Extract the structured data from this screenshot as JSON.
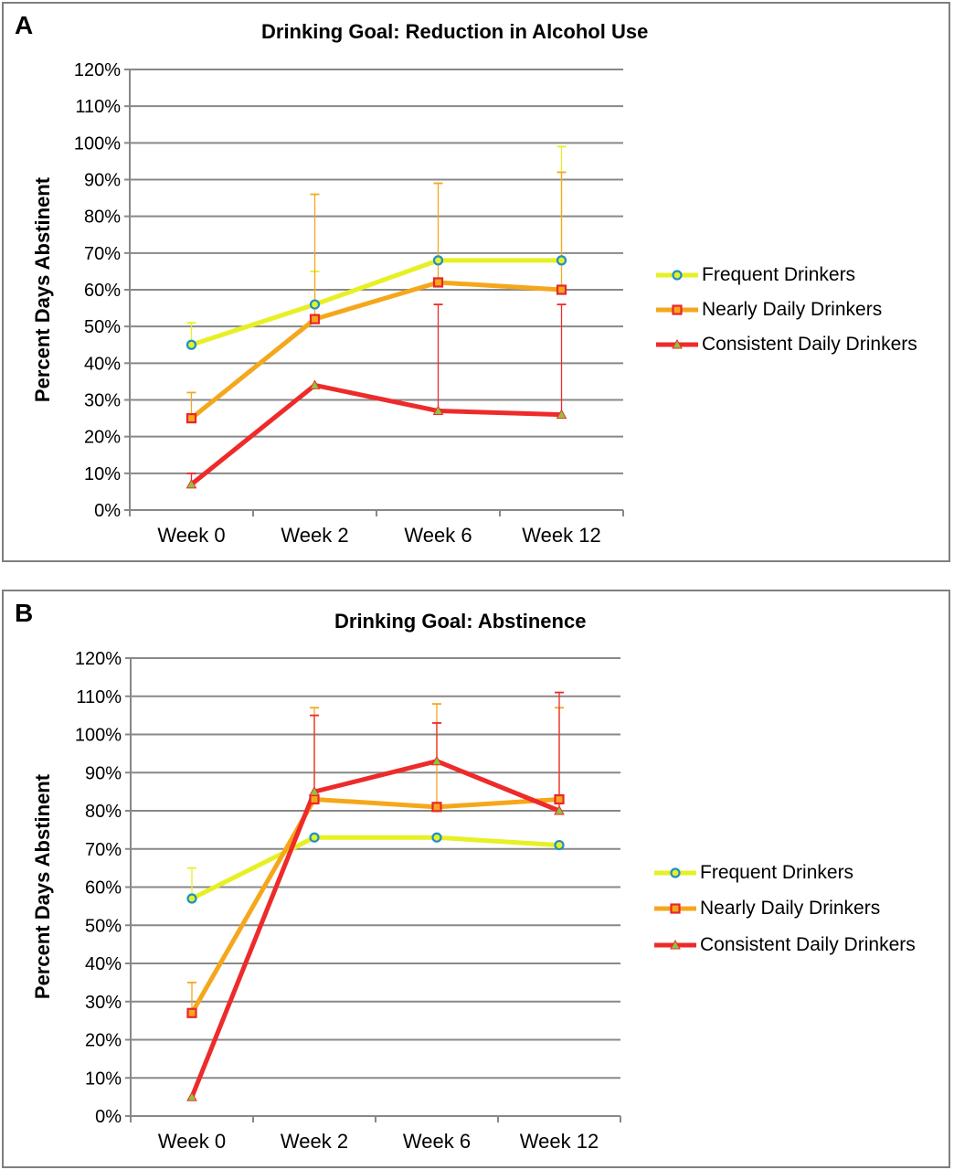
{
  "chart_data": [
    {
      "type": "line",
      "panel_label": "A",
      "title": "Drinking Goal: Reduction in Alcohol Use",
      "xlabel": "",
      "ylabel": "Percent Days Abstinent",
      "categories": [
        "Week 0",
        "Week 2",
        "Week 6",
        "Week 12"
      ],
      "y_ticks": [
        "0%",
        "10%",
        "20%",
        "30%",
        "40%",
        "50%",
        "60%",
        "70%",
        "80%",
        "90%",
        "100%",
        "110%",
        "120%"
      ],
      "ylim": [
        0,
        120
      ],
      "grid": true,
      "legend_position": "right",
      "series": [
        {
          "name": "Frequent Drinkers",
          "values": [
            45,
            56,
            68,
            68
          ],
          "error_upper": [
            51,
            65,
            68,
            99
          ],
          "color": "#e6f024",
          "marker": "circle",
          "marker_color": "#1f8fc9"
        },
        {
          "name": "Nearly Daily Drinkers",
          "values": [
            25,
            52,
            62,
            60
          ],
          "error_upper": [
            32,
            86,
            89,
            92
          ],
          "color": "#f5a71c",
          "marker": "square",
          "marker_color": "#e8262c"
        },
        {
          "name": "Consistent Daily Drinkers",
          "values": [
            7,
            34,
            27,
            26
          ],
          "error_upper": [
            10,
            34,
            56,
            56
          ],
          "color": "#ee2a2a",
          "marker": "triangle",
          "marker_color": "#8cc63e"
        }
      ]
    },
    {
      "type": "line",
      "panel_label": "B",
      "title": "Drinking Goal: Abstinence",
      "xlabel": "",
      "ylabel": "Percent Days Abstinent",
      "categories": [
        "Week 0",
        "Week 2",
        "Week 6",
        "Week 12"
      ],
      "y_ticks": [
        "0%",
        "10%",
        "20%",
        "30%",
        "40%",
        "50%",
        "60%",
        "70%",
        "80%",
        "90%",
        "100%",
        "110%",
        "120%"
      ],
      "ylim": [
        0,
        120
      ],
      "grid": true,
      "legend_position": "right",
      "series": [
        {
          "name": "Frequent Drinkers",
          "values": [
            57,
            73,
            73,
            71
          ],
          "error_upper": [
            65,
            73,
            73,
            71
          ],
          "color": "#e6f024",
          "marker": "circle",
          "marker_color": "#1f8fc9"
        },
        {
          "name": "Nearly Daily Drinkers",
          "values": [
            27,
            83,
            81,
            83
          ],
          "error_upper": [
            35,
            107,
            108,
            107
          ],
          "color": "#f5a71c",
          "marker": "square",
          "marker_color": "#e8262c"
        },
        {
          "name": "Consistent Daily Drinkers",
          "values": [
            5,
            85,
            93,
            80
          ],
          "error_upper": [
            5,
            105,
            103,
            111
          ],
          "color": "#ee2a2a",
          "marker": "triangle",
          "marker_color": "#8cc63e"
        }
      ]
    }
  ]
}
